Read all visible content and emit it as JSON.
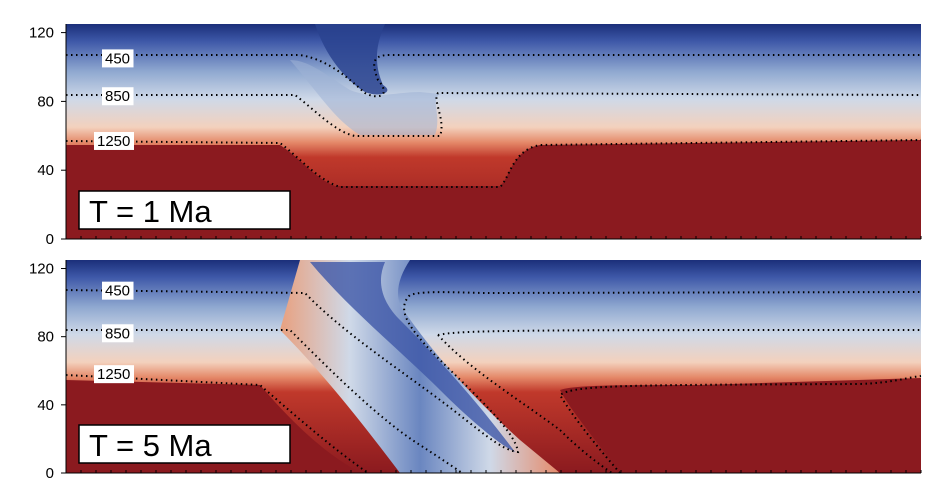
{
  "chart_data": [
    {
      "type": "heatmap",
      "panel_label": "T = 1 Ma",
      "ylim": [
        0,
        125
      ],
      "yticks": [
        "0",
        "40",
        "80",
        "120"
      ],
      "xlabel": "",
      "ylabel": "",
      "colormap": [
        "#8b1a1f",
        "#c0392b",
        "#e58a6a",
        "#f3d1bd",
        "#cfd9e8",
        "#8fa8d0",
        "#3e58a8",
        "#1b2f7a"
      ],
      "isotherms": [
        {
          "label": "450",
          "depth_y": 105
        },
        {
          "label": "850",
          "depth_y": 83
        },
        {
          "label": "1250",
          "depth_y": 57
        }
      ]
    },
    {
      "type": "heatmap",
      "panel_label": "T = 5 Ma",
      "ylim": [
        0,
        125
      ],
      "yticks": [
        "0",
        "40",
        "80",
        "120"
      ],
      "xlabel": "",
      "ylabel": "",
      "colormap": [
        "#8b1a1f",
        "#c0392b",
        "#e58a6a",
        "#f3d1bd",
        "#cfd9e8",
        "#8fa8d0",
        "#3e58a8",
        "#1b2f7a"
      ],
      "isotherms": [
        {
          "label": "450",
          "depth_y": 107
        },
        {
          "label": "850",
          "depth_y": 82
        },
        {
          "label": "1250",
          "depth_y": 58
        }
      ]
    }
  ]
}
